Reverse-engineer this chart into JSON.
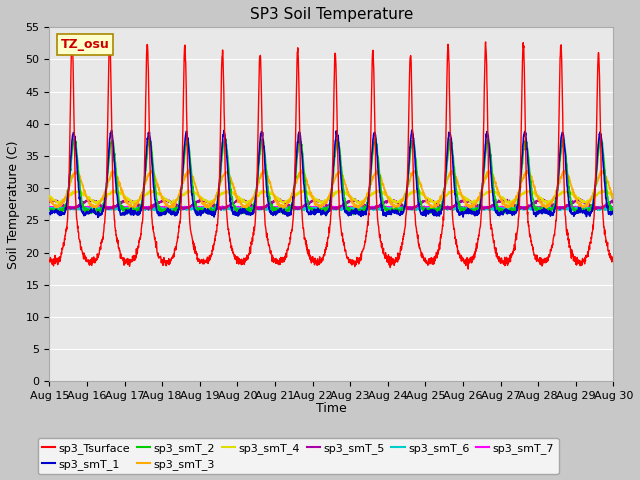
{
  "title": "SP3 Soil Temperature",
  "ylabel": "Soil Temperature (C)",
  "xlabel": "Time",
  "tz_label": "TZ_osu",
  "ylim": [
    0,
    55
  ],
  "yticks": [
    0,
    5,
    10,
    15,
    20,
    25,
    30,
    35,
    40,
    45,
    50,
    55
  ],
  "x_tick_labels": [
    "Aug 15",
    "Aug 16",
    "Aug 17",
    "Aug 18",
    "Aug 19",
    "Aug 20",
    "Aug 21",
    "Aug 22",
    "Aug 23",
    "Aug 24",
    "Aug 25",
    "Aug 26",
    "Aug 27",
    "Aug 28",
    "Aug 29",
    "Aug 30"
  ],
  "series_colors": {
    "sp3_Tsurface": "#ff0000",
    "sp3_smT_1": "#0000cc",
    "sp3_smT_2": "#00cc00",
    "sp3_smT_3": "#ffaa00",
    "sp3_smT_4": "#dddd00",
    "sp3_smT_5": "#aa00aa",
    "sp3_smT_6": "#00cccc",
    "sp3_smT_7": "#ff00ff"
  },
  "plot_bg_color": "#e8e8e8",
  "fig_bg_color": "#c8c8c8",
  "grid_color": "#ffffff",
  "title_fontsize": 11,
  "label_fontsize": 9,
  "tick_fontsize": 8,
  "legend_fontsize": 8
}
